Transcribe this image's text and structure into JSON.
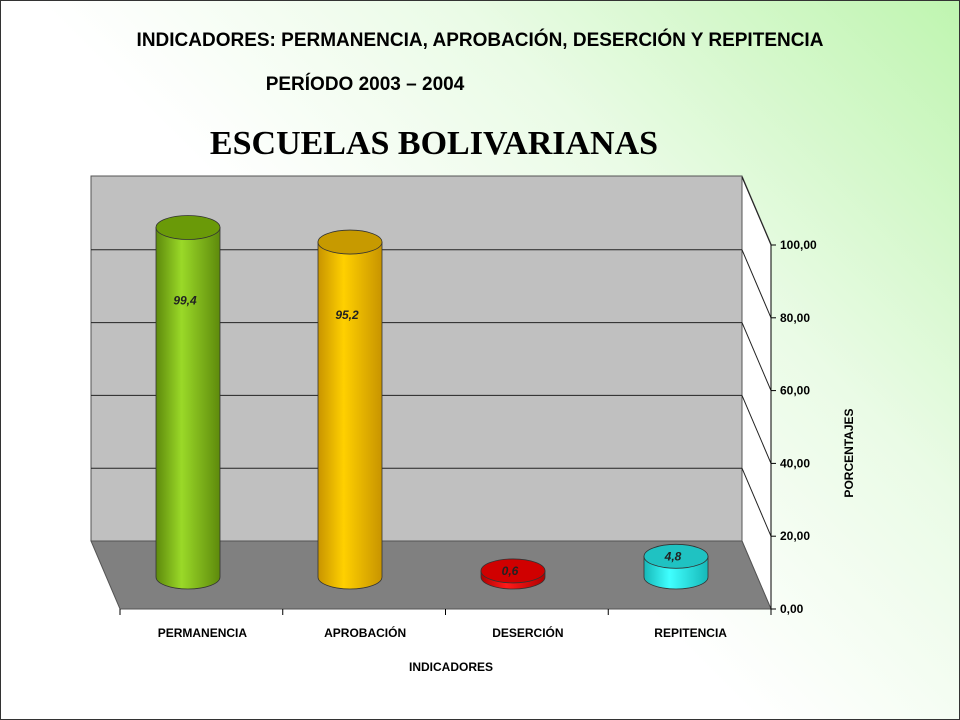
{
  "title": "INDICADORES: PERMANENCIA, APROBACIÓN, DESERCIÓN Y REPITENCIA",
  "subtitle": "PERÍODO 2003 – 2004",
  "heading": "ESCUELAS BOLIVARIANAS",
  "chart_data": {
    "type": "bar",
    "categories": [
      "PERMANENCIA",
      "APROBACIÓN",
      "DESERCIÓN",
      "REPITENCIA"
    ],
    "values": [
      99.4,
      95.2,
      0.6,
      4.8
    ],
    "data_labels": [
      "99,4",
      "95,2",
      "0,6",
      "4,8"
    ],
    "xlabel": "INDICADORES",
    "ylabel": "PORCENTAJES",
    "ylim": [
      0,
      100
    ],
    "ytick_labels": [
      "0,00",
      "20,00",
      "40,00",
      "60,00",
      "80,00",
      "100,00"
    ],
    "grid": true,
    "colors": {
      "PERMANENCIA": "#8fce1f",
      "APROBACIÓN": "#ffcc00",
      "DESERCIÓN": "#ff0000",
      "REPITENCIA": "#33ffff"
    }
  }
}
